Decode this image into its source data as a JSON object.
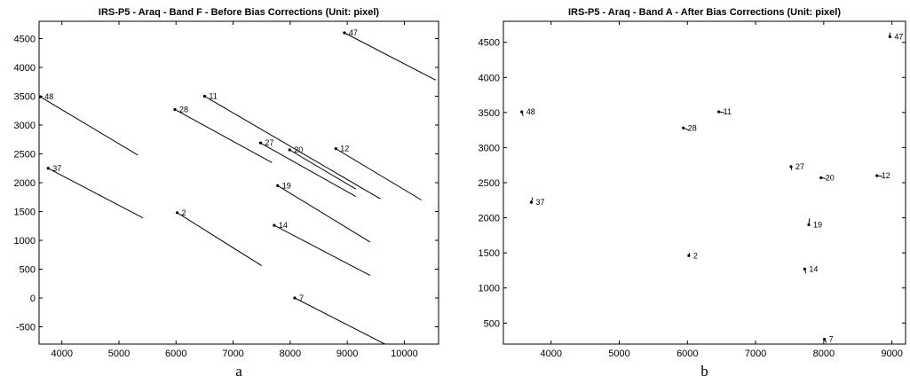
{
  "chart_data": [
    {
      "type": "line",
      "title": "IRS-P5 - Araq - Band F - Before Bias Corrections (Unit: pixel)",
      "caption": "a",
      "xlim": [
        3600,
        10600
      ],
      "ylim": [
        -800,
        4800
      ],
      "xticks": [
        4000,
        5000,
        6000,
        7000,
        8000,
        9000,
        10000
      ],
      "yticks": [
        -500,
        0,
        500,
        1000,
        1500,
        2000,
        2500,
        3000,
        3500,
        4000,
        4500
      ],
      "grid": false,
      "series": [
        {
          "name": "47",
          "x": [
            8950,
            10550
          ],
          "y": [
            4600,
            3780
          ]
        },
        {
          "name": "48",
          "x": [
            3620,
            5330
          ],
          "y": [
            3490,
            2480
          ]
        },
        {
          "name": "11",
          "x": [
            6500,
            9580
          ],
          "y": [
            3500,
            1720
          ]
        },
        {
          "name": "28",
          "x": [
            5980,
            7680
          ],
          "y": [
            3270,
            2350
          ]
        },
        {
          "name": "27",
          "x": [
            7480,
            9150
          ],
          "y": [
            2690,
            1760
          ]
        },
        {
          "name": "20",
          "x": [
            7990,
            9150
          ],
          "y": [
            2570,
            1890
          ]
        },
        {
          "name": "12",
          "x": [
            8800,
            10300
          ],
          "y": [
            2590,
            1700
          ]
        },
        {
          "name": "37",
          "x": [
            3760,
            5420
          ],
          "y": [
            2250,
            1390
          ]
        },
        {
          "name": "19",
          "x": [
            7780,
            9400
          ],
          "y": [
            1950,
            970
          ]
        },
        {
          "name": "2",
          "x": [
            6020,
            7500
          ],
          "y": [
            1480,
            560
          ]
        },
        {
          "name": "14",
          "x": [
            7720,
            9400
          ],
          "y": [
            1260,
            390
          ]
        },
        {
          "name": "7",
          "x": [
            8080,
            9660
          ],
          "y": [
            0,
            -800
          ]
        }
      ]
    },
    {
      "type": "line",
      "title": "IRS-P5 - Araq - Band A - After Bias Corrections (Unit: pixel)",
      "caption": "b",
      "xlim": [
        3300,
        9200
      ],
      "ylim": [
        200,
        4800
      ],
      "xticks": [
        4000,
        5000,
        6000,
        7000,
        8000,
        9000
      ],
      "yticks": [
        500,
        1000,
        1500,
        2000,
        2500,
        3000,
        3500,
        4000,
        4500
      ],
      "grid": false,
      "series": [
        {
          "name": "47",
          "x": [
            8970,
            8970
          ],
          "y": [
            4580,
            4640
          ]
        },
        {
          "name": "48",
          "x": [
            3570,
            3590
          ],
          "y": [
            3510,
            3450
          ]
        },
        {
          "name": "11",
          "x": [
            6460,
            6540
          ],
          "y": [
            3510,
            3500
          ]
        },
        {
          "name": "28",
          "x": [
            5940,
            6020
          ],
          "y": [
            3280,
            3250
          ]
        },
        {
          "name": "27",
          "x": [
            7520,
            7530
          ],
          "y": [
            2730,
            2680
          ]
        },
        {
          "name": "20",
          "x": [
            7960,
            8030
          ],
          "y": [
            2570,
            2560
          ]
        },
        {
          "name": "12",
          "x": [
            8780,
            8860
          ],
          "y": [
            2600,
            2590
          ]
        },
        {
          "name": "37",
          "x": [
            3710,
            3730
          ],
          "y": [
            2220,
            2290
          ]
        },
        {
          "name": "19",
          "x": [
            7780,
            7790
          ],
          "y": [
            1900,
            1990
          ]
        },
        {
          "name": "2",
          "x": [
            6020,
            6030
          ],
          "y": [
            1460,
            1500
          ]
        },
        {
          "name": "14",
          "x": [
            7720,
            7740
          ],
          "y": [
            1270,
            1210
          ]
        },
        {
          "name": "7",
          "x": [
            8010,
            8040
          ],
          "y": [
            270,
            220
          ]
        }
      ]
    }
  ]
}
